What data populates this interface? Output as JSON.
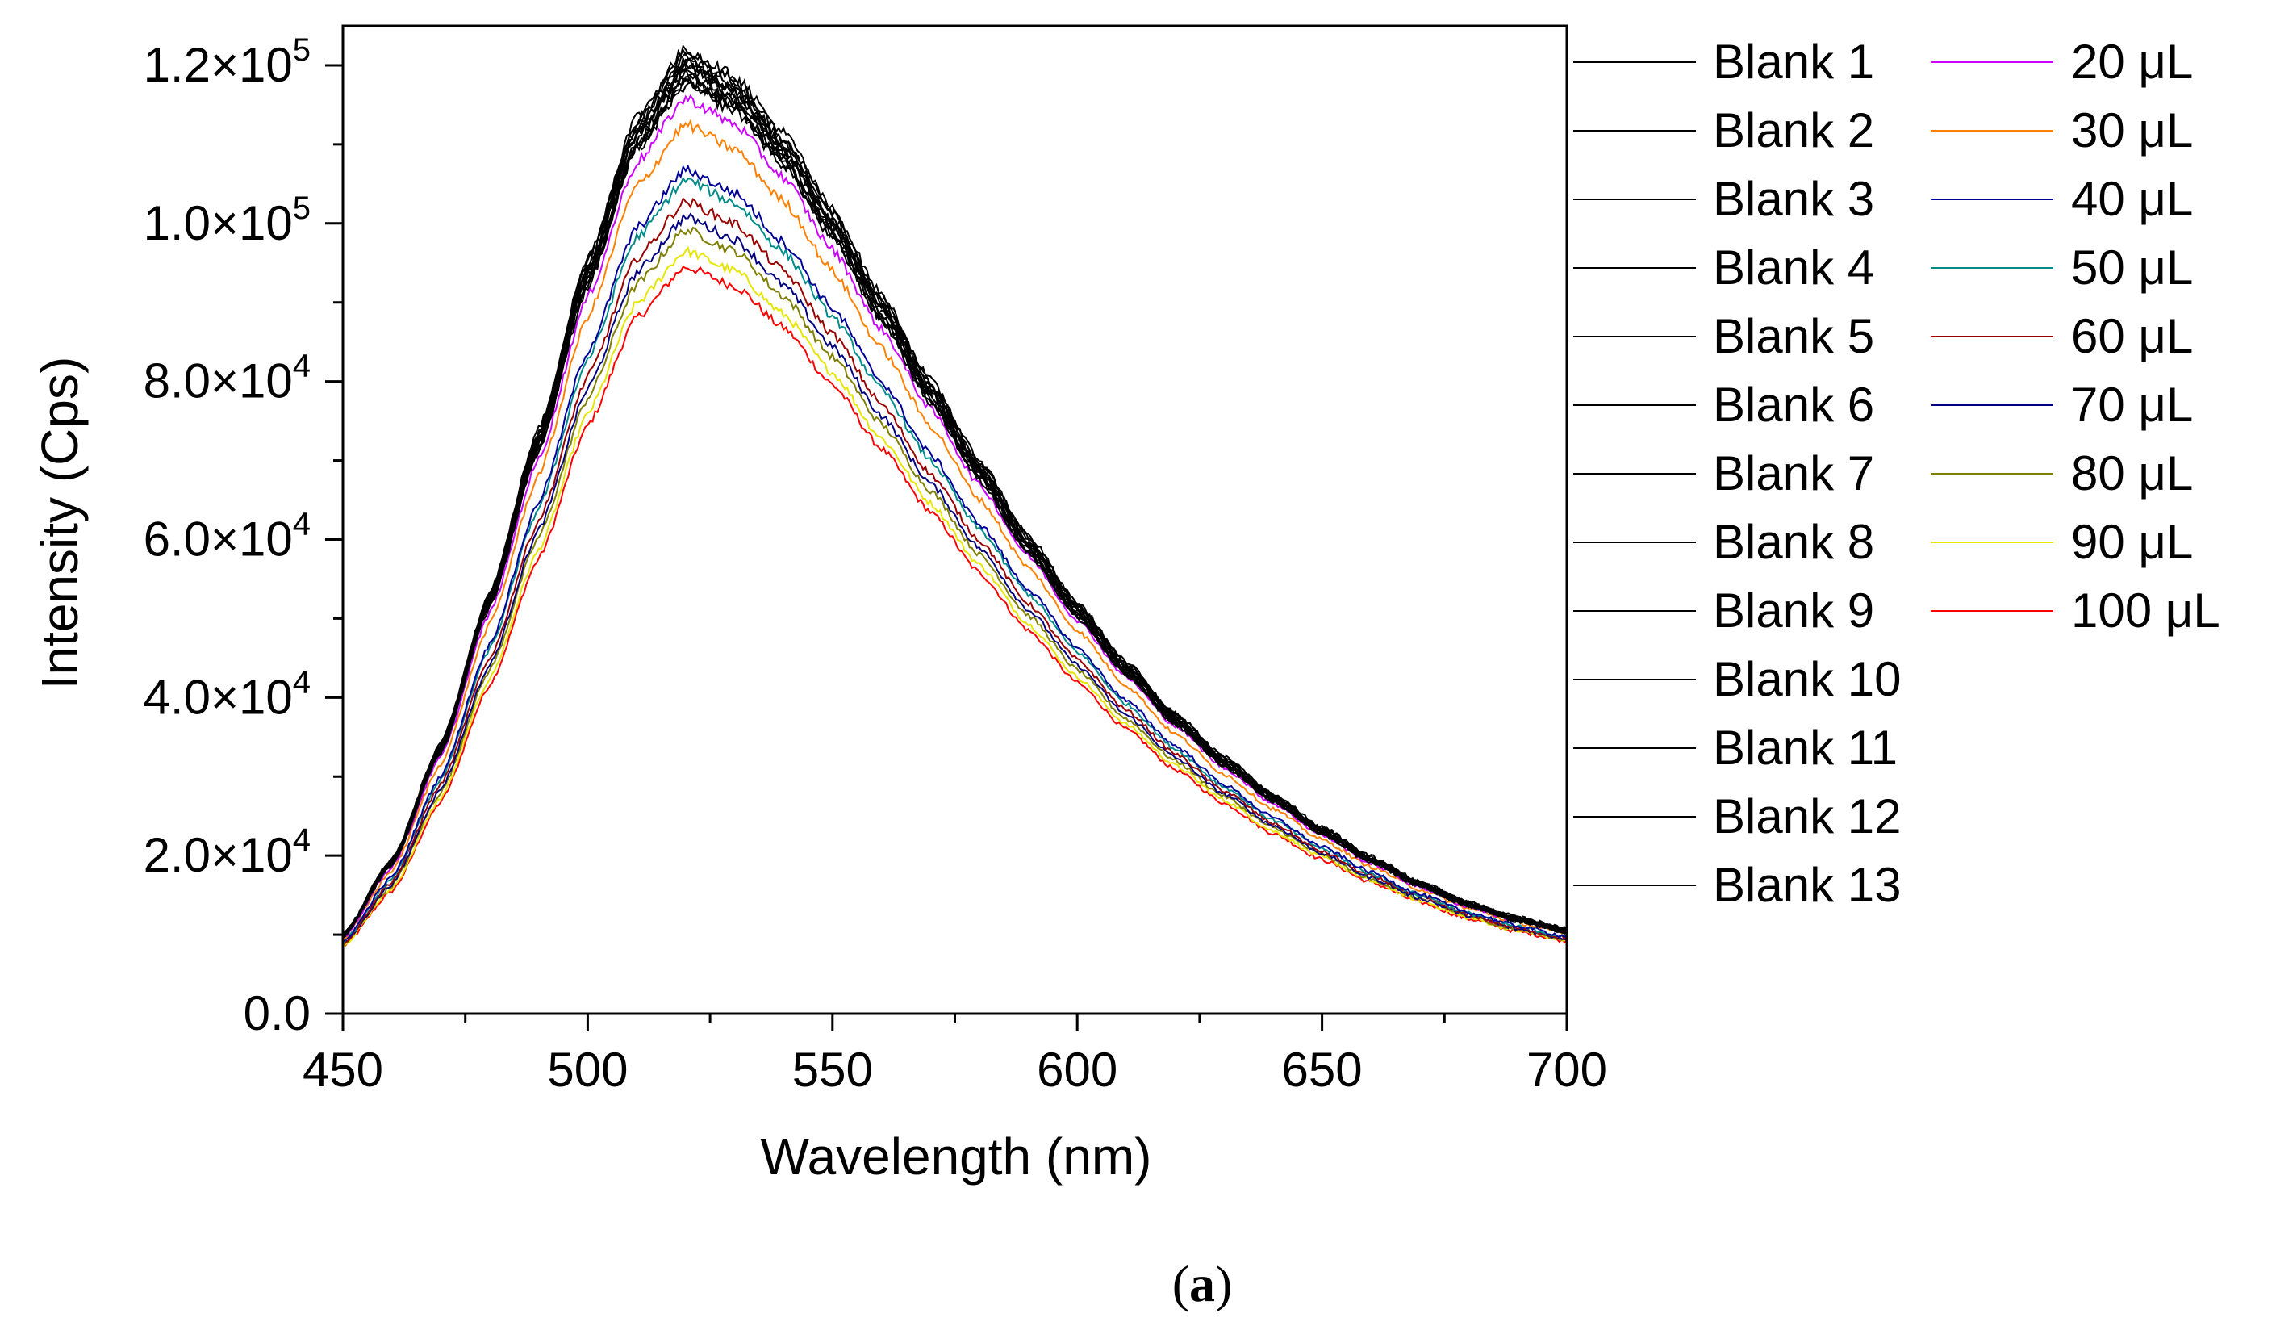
{
  "chart_data": {
    "type": "line",
    "title": "",
    "xlabel": "Wavelength (nm)",
    "ylabel": "Intensity (Cps)",
    "xlim": [
      450,
      700
    ],
    "ylim": [
      0,
      125000
    ],
    "x_ticks": [
      450,
      500,
      550,
      600,
      650,
      700
    ],
    "x_tick_labels": [
      "450",
      "500",
      "550",
      "600",
      "650",
      "700"
    ],
    "y_ticks": [
      0,
      20000,
      40000,
      60000,
      80000,
      100000,
      120000
    ],
    "y_tick_labels": [
      {
        "mantissa": "0.0",
        "exponent": ""
      },
      {
        "mantissa": "2.0×10",
        "exponent": "4"
      },
      {
        "mantissa": "4.0×10",
        "exponent": "4"
      },
      {
        "mantissa": "6.0×10",
        "exponent": "4"
      },
      {
        "mantissa": "8.0×10",
        "exponent": "4"
      },
      {
        "mantissa": "1.0×10",
        "exponent": "5"
      },
      {
        "mantissa": "1.2×10",
        "exponent": "5"
      }
    ],
    "peak_wavelength": 520,
    "x_samples": [
      450,
      460,
      470,
      480,
      490,
      500,
      510,
      520,
      530,
      540,
      550,
      560,
      570,
      580,
      590,
      600,
      610,
      620,
      630,
      640,
      650,
      660,
      670,
      680,
      690,
      700
    ],
    "series": [
      {
        "name": "Blank 1",
        "color": "#000000",
        "peak": 122000,
        "values": [
          10000,
          19500,
          34200,
          53300,
          74000,
          95600,
          113500,
          122000,
          118700,
          111500,
          101800,
          91000,
          80200,
          70100,
          60500,
          52000,
          44500,
          38000,
          32500,
          27800,
          23600,
          19900,
          16700,
          14100,
          12200,
          10700
        ]
      },
      {
        "name": "Blank 2",
        "color": "#000000",
        "peak": 121500,
        "values": [
          10000,
          19400,
          34100,
          53100,
          73700,
          95200,
          113000,
          121500,
          118200,
          111000,
          101400,
          90600,
          79900,
          69800,
          60300,
          51800,
          44300,
          37900,
          32400,
          27700,
          23500,
          19800,
          16600,
          14000,
          12100,
          10700
        ]
      },
      {
        "name": "Blank 3",
        "color": "#000000",
        "peak": 121000,
        "values": [
          10000,
          19400,
          34000,
          52900,
          73400,
          94800,
          112500,
          121000,
          117700,
          110500,
          100900,
          90200,
          79600,
          69500,
          60000,
          51600,
          44100,
          37700,
          32200,
          27600,
          23400,
          19700,
          16600,
          14000,
          12100,
          10600
        ]
      },
      {
        "name": "Blank 4",
        "color": "#000000",
        "peak": 120500,
        "values": [
          9900,
          19300,
          33800,
          52700,
          73100,
          94400,
          112100,
          120500,
          117200,
          110100,
          100500,
          89900,
          79300,
          69200,
          59800,
          51400,
          43900,
          37500,
          32100,
          27500,
          23300,
          19600,
          16500,
          13900,
          12000,
          10600
        ]
      },
      {
        "name": "Blank 5",
        "color": "#000000",
        "peak": 120000,
        "values": [
          9900,
          19200,
          33700,
          52500,
          72800,
          94000,
          111600,
          120000,
          116800,
          109600,
          100100,
          89500,
          78900,
          68900,
          59500,
          51200,
          43700,
          37400,
          32000,
          27400,
          23200,
          19500,
          16400,
          13800,
          12000,
          10500
        ]
      },
      {
        "name": "Blank 6",
        "color": "#000000",
        "peak": 119500,
        "values": [
          9900,
          19100,
          33600,
          52300,
          72500,
          93600,
          111100,
          119500,
          116300,
          109200,
          99700,
          89100,
          78600,
          68600,
          59300,
          50900,
          43500,
          37200,
          31800,
          27200,
          23100,
          19400,
          16400,
          13800,
          11900,
          10500
        ]
      },
      {
        "name": "Blank 7",
        "color": "#000000",
        "peak": 119000,
        "values": [
          9800,
          19000,
          33400,
          52100,
          72200,
          93200,
          110700,
          119000,
          115800,
          108700,
          99300,
          88800,
          78300,
          68400,
          59000,
          50700,
          43300,
          37000,
          31700,
          27100,
          23000,
          19400,
          16300,
          13700,
          11900,
          10400
        ]
      },
      {
        "name": "Blank 8",
        "color": "#000000",
        "peak": 118500,
        "values": [
          9800,
          19000,
          33300,
          51900,
          71900,
          92800,
          110200,
          118500,
          115300,
          108300,
          98900,
          88400,
          78000,
          68100,
          58800,
          50500,
          43100,
          36900,
          31600,
          27000,
          22900,
          19300,
          16200,
          13700,
          11800,
          10400
        ]
      },
      {
        "name": "Blank 9",
        "color": "#000000",
        "peak": 118000,
        "values": [
          9800,
          18900,
          33200,
          51700,
          71600,
          92400,
          109700,
          118000,
          114800,
          107800,
          98500,
          88000,
          77700,
          67800,
          58500,
          50300,
          43000,
          36700,
          31400,
          26900,
          22800,
          19200,
          16200,
          13600,
          11800,
          10400
        ]
      },
      {
        "name": "Blank 10",
        "color": "#000000",
        "peak": 117500,
        "values": [
          9700,
          18800,
          33000,
          51500,
          71300,
          92000,
          109300,
          117500,
          114300,
          107400,
          98000,
          87700,
          77300,
          67500,
          58300,
          50100,
          42800,
          36600,
          31300,
          26800,
          22700,
          19100,
          16100,
          13600,
          11700,
          10300
        ]
      },
      {
        "name": "Blank 11",
        "color": "#000000",
        "peak": 119800,
        "values": [
          9900,
          19200,
          33700,
          52400,
          72700,
          93800,
          111400,
          119800,
          116600,
          109400,
          99900,
          89300,
          78800,
          68800,
          59400,
          51100,
          43600,
          37300,
          31900,
          27300,
          23200,
          19500,
          16400,
          13800,
          11900,
          10500
        ]
      },
      {
        "name": "Blank 12",
        "color": "#000000",
        "peak": 120200,
        "values": [
          9900,
          19300,
          33700,
          52600,
          72900,
          94200,
          111800,
          120200,
          117000,
          109800,
          100300,
          89700,
          79100,
          69000,
          59600,
          51300,
          43800,
          37400,
          32000,
          27400,
          23300,
          19600,
          16500,
          13900,
          12000,
          10600
        ]
      },
      {
        "name": "Blank 13",
        "color": "#000000",
        "peak": 118200,
        "values": [
          9800,
          19000,
          33200,
          51800,
          71700,
          92600,
          109900,
          118200,
          115000,
          108000,
          98600,
          88200,
          77800,
          67900,
          58600,
          50400,
          43000,
          36800,
          31500,
          26900,
          22900,
          19200,
          16200,
          13600,
          11800,
          10400
        ]
      },
      {
        "name": "20 μL",
        "color": "#cc00ff",
        "peak": 115800,
        "values": [
          9600,
          18600,
          32500,
          50700,
          70200,
          90700,
          107700,
          115800,
          112600,
          105800,
          96700,
          86600,
          76500,
          66900,
          57900,
          49800,
          42600,
          36400,
          31100,
          26600,
          22600,
          19000,
          16000,
          13500,
          11700,
          10300
        ]
      },
      {
        "name": "30 μL",
        "color": "#ff8000",
        "peak": 112500,
        "values": [
          9400,
          18100,
          31600,
          49300,
          68200,
          88200,
          104700,
          112500,
          109400,
          102800,
          94000,
          84200,
          74400,
          65100,
          56400,
          48500,
          41500,
          35400,
          30300,
          25900,
          22000,
          18600,
          15700,
          13300,
          11500,
          10100
        ]
      },
      {
        "name": "40 μL",
        "color": "#000099",
        "peak": 106800,
        "values": [
          9100,
          17300,
          30100,
          46800,
          64800,
          83800,
          99400,
          106800,
          103900,
          97600,
          89300,
          80000,
          70800,
          62000,
          53700,
          46300,
          39600,
          33900,
          29000,
          24800,
          21100,
          17900,
          15100,
          12800,
          11100,
          9800
        ]
      },
      {
        "name": "50 μL",
        "color": "#008b8b",
        "peak": 105500,
        "values": [
          9000,
          17100,
          29700,
          46200,
          64000,
          82800,
          98200,
          105500,
          102600,
          96400,
          88200,
          79000,
          70000,
          61300,
          53100,
          45800,
          39200,
          33500,
          28700,
          24500,
          20900,
          17700,
          15000,
          12700,
          11000,
          9700
        ]
      },
      {
        "name": "60 μL",
        "color": "#990000",
        "peak": 102800,
        "values": [
          8900,
          16700,
          29000,
          45000,
          62400,
          80600,
          95600,
          102800,
          100000,
          94000,
          86000,
          77100,
          68300,
          59900,
          51900,
          44800,
          38400,
          32900,
          28200,
          24100,
          20500,
          17400,
          14800,
          12500,
          10800,
          9600
        ]
      },
      {
        "name": "70 μL",
        "color": "#000080",
        "peak": 100800,
        "values": [
          8800,
          16400,
          28400,
          44100,
          61200,
          79100,
          93800,
          100800,
          98000,
          92200,
          84400,
          75700,
          67100,
          58900,
          51100,
          44100,
          37800,
          32400,
          27800,
          23800,
          20300,
          17200,
          14600,
          12400,
          10700,
          9500
        ]
      },
      {
        "name": "80 μL",
        "color": "#808000",
        "peak": 99200,
        "values": [
          8700,
          16200,
          28000,
          43500,
          60300,
          77900,
          92300,
          99200,
          96500,
          90800,
          83100,
          74600,
          66200,
          58100,
          50400,
          43500,
          37300,
          32000,
          27500,
          23500,
          20100,
          17000,
          14500,
          12300,
          10600,
          9400
        ]
      },
      {
        "name": "90 μL",
        "color": "#e6e600",
        "peak": 96500,
        "values": [
          8600,
          15800,
          27300,
          42400,
          58700,
          75900,
          89900,
          96500,
          94000,
          88500,
          81100,
          72800,
          64600,
          56800,
          49300,
          42600,
          36600,
          31400,
          27000,
          23100,
          19800,
          16800,
          14300,
          12100,
          10500,
          9300
        ]
      },
      {
        "name": "100  μL",
        "color": "#ff0000",
        "peak": 94500,
        "values": [
          8500,
          15500,
          26800,
          41600,
          57600,
          74400,
          88100,
          94500,
          92100,
          86800,
          79600,
          71500,
          63500,
          55800,
          48500,
          41900,
          36000,
          30900,
          26600,
          22800,
          19500,
          16600,
          14100,
          12000,
          10400,
          9200
        ]
      }
    ],
    "legend": {
      "placement": "right",
      "column_1": [
        "Blank 1",
        "Blank 2",
        "Blank 3",
        "Blank 4",
        "Blank 5",
        "Blank 6",
        "Blank 7",
        "Blank 8",
        "Blank 9",
        "Blank 10",
        "Blank 11",
        "Blank 12",
        "Blank 13"
      ],
      "column_2": [
        "20 μL",
        "30 μL",
        "40 μL",
        "50 μL",
        "60 μL",
        "70 μL",
        "80 μL",
        "90 μL",
        "100  μL"
      ]
    },
    "panel_label": {
      "open": "(",
      "letter": "a",
      "close": ")"
    }
  }
}
